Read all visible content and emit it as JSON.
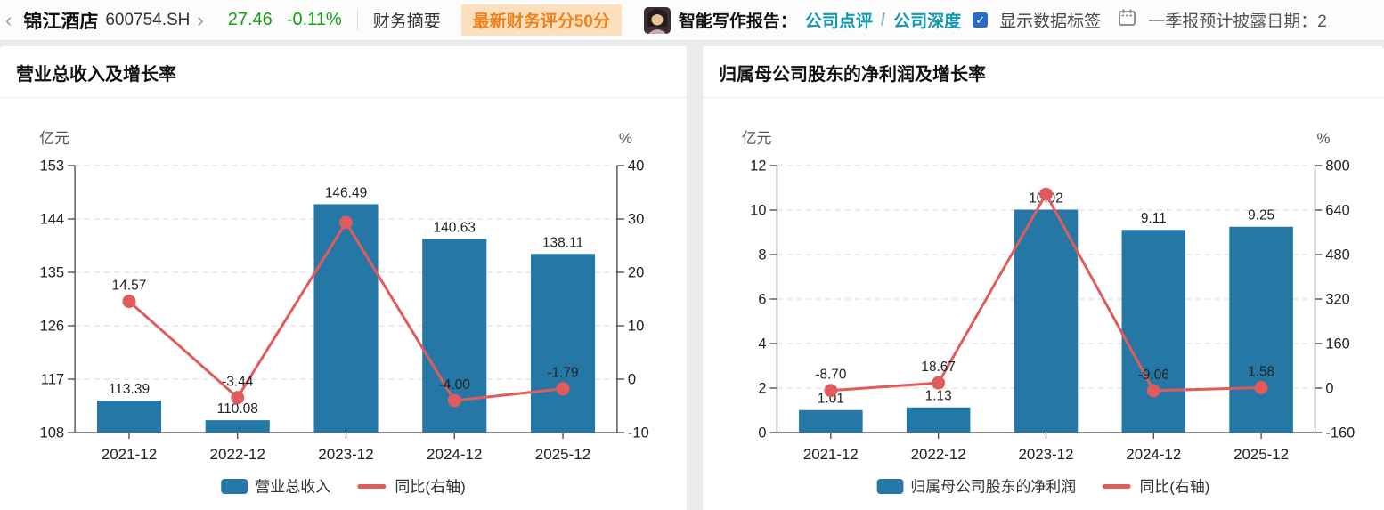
{
  "header": {
    "back_icon": "‹",
    "stock_name": "锦江酒店",
    "stock_code": "600754.SH",
    "forward_icon": "›",
    "price": "27.46",
    "change_percent": "-0.11%",
    "tab_financial_summary": "财务摘要",
    "score_badge": "最新财务评分50分",
    "ai_report_label": "智能写作报告：",
    "link_company_comment": "公司点评",
    "link_separator": "/",
    "link_company_deep": "公司深度",
    "checkbox_checked": "✓",
    "show_data_labels_label": "显示数据标签",
    "disclosure_note": "一季报预计披露日期：2"
  },
  "colors": {
    "bar": "#2577a6",
    "line": "#e05c5c",
    "price_change": "#18a018",
    "link": "#1199b6",
    "badge_bg": "#fce0bd",
    "badge_text": "#ee8220",
    "checkbox": "#2a6bc8"
  },
  "chart_data": [
    {
      "type": "bar",
      "title": "营业总收入及增长率",
      "categories": [
        "2021-12",
        "2022-12",
        "2023-12",
        "2024-12",
        "2025-12"
      ],
      "series": [
        {
          "name": "营业总收入",
          "type": "bar",
          "axis": "left",
          "values": [
            113.39,
            110.08,
            146.49,
            140.63,
            138.11
          ],
          "labels": [
            "113.39",
            "110.08",
            "146.49",
            "140.63",
            "138.11"
          ]
        },
        {
          "name": "同比(右轴)",
          "type": "line",
          "axis": "right",
          "values": [
            14.57,
            -3.44,
            29.34,
            -4.0,
            -1.79
          ],
          "labels": [
            "14.57",
            "-3.44",
            "",
            "-4.00",
            "-1.79"
          ]
        }
      ],
      "left_axis": {
        "name": "亿元",
        "min": 108,
        "max": 153,
        "ticks": [
          153,
          144,
          135,
          126,
          117,
          108
        ]
      },
      "right_axis": {
        "name": "%",
        "min": -10,
        "max": 40,
        "ticks": [
          40,
          30,
          20,
          10,
          0,
          -10
        ]
      },
      "grid": true,
      "legend_position": "bottom"
    },
    {
      "type": "bar",
      "title": "归属母公司股东的净利润及增长率",
      "categories": [
        "2021-12",
        "2022-12",
        "2023-12",
        "2024-12",
        "2025-12"
      ],
      "series": [
        {
          "name": "归属母公司股东的净利润",
          "type": "bar",
          "axis": "left",
          "values": [
            1.01,
            1.13,
            10.02,
            9.11,
            9.25
          ],
          "labels": [
            "1.01",
            "1.13",
            "10.02",
            "9.11",
            "9.25"
          ]
        },
        {
          "name": "同比(右轴)",
          "type": "line",
          "axis": "right",
          "values": [
            -8.7,
            18.67,
            697,
            -9.06,
            1.58
          ],
          "labels": [
            "-8.70",
            "18.67",
            "",
            "-9.06",
            "1.58"
          ]
        }
      ],
      "left_axis": {
        "name": "亿元",
        "min": 0,
        "max": 12,
        "ticks": [
          12,
          10,
          8,
          6,
          4,
          2,
          0
        ]
      },
      "right_axis": {
        "name": "%",
        "min": -160,
        "max": 800,
        "ticks": [
          800,
          640,
          480,
          320,
          160,
          0,
          -160
        ]
      },
      "grid": true,
      "legend_position": "bottom"
    }
  ]
}
